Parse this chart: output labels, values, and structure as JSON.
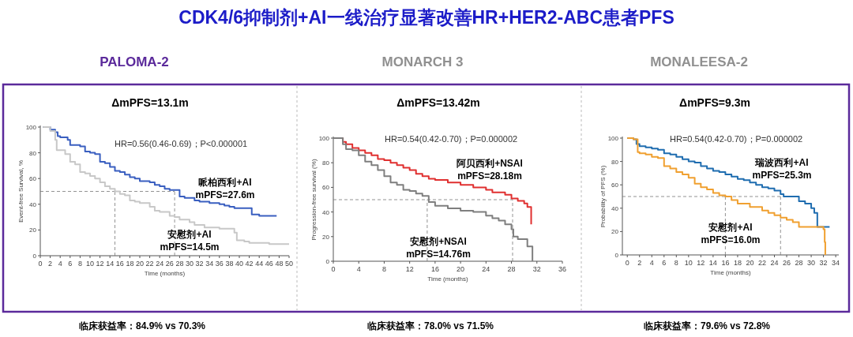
{
  "chart_data": [
    {
      "type": "other",
      "title": "CDK4/6抑制剂+AI一线治疗显著改善HR+HER2-ABC患者PFS"
    },
    {
      "type": "step",
      "title": "PALOMA-2",
      "subtitle": "ΔmPFS=13.1m",
      "xlabel": "Time (months)",
      "ylabel": "Event-free Survival, %",
      "xlim": [
        0,
        50
      ],
      "xticks": [
        0,
        2,
        4,
        6,
        8,
        10,
        12,
        14,
        16,
        18,
        20,
        22,
        24,
        26,
        28,
        30,
        32,
        34,
        36,
        38,
        40,
        42,
        44,
        46,
        48,
        50
      ],
      "ylim": [
        0,
        100
      ],
      "yticks": [
        0,
        20,
        40,
        60,
        80,
        100
      ],
      "grid": false,
      "annotations": [
        "HR=0.56(0.46-0.69)；P<0.000001",
        "mPFS=27.6m",
        "mPFS=14.5m",
        "临床获益率：84.9% vs 70.3%"
      ],
      "ref_lines": [
        {
          "axis": "y",
          "value": 50,
          "line_style": "dashed"
        },
        {
          "axis": "x",
          "value": 15,
          "line_style": "dashed"
        },
        {
          "axis": "x",
          "value": 27,
          "line_style": "dashed"
        }
      ],
      "series": [
        {
          "name": "哌柏西利+AI",
          "color": "#3a5fc0",
          "x": [
            0.5,
            1,
            2,
            3,
            3.5,
            4,
            5,
            5.5,
            6,
            8,
            9,
            10,
            11,
            12,
            13,
            14,
            15,
            16,
            17,
            18,
            19,
            20,
            22,
            23,
            24,
            25,
            26,
            27,
            28,
            29,
            30,
            31,
            32,
            34,
            36,
            37,
            38,
            39,
            40,
            42,
            42.5,
            44,
            46,
            47.5
          ],
          "values": [
            100,
            100,
            98,
            96,
            93,
            92,
            92,
            90,
            86,
            85,
            81,
            80,
            79,
            73,
            72,
            69,
            66,
            65,
            63,
            61,
            60,
            58,
            57,
            55,
            54,
            52,
            51,
            51,
            46,
            45,
            45,
            43,
            42,
            41,
            40,
            39,
            38,
            37,
            37,
            37,
            32,
            31,
            31,
            31
          ]
        },
        {
          "name": "安慰剂+AI",
          "color": "#c8c8c8",
          "x": [
            0.5,
            2,
            3,
            3.3,
            5,
            6,
            7,
            8,
            9,
            10,
            11,
            12,
            13,
            14,
            15,
            16,
            17,
            18,
            19,
            20,
            22,
            23,
            24,
            26,
            27,
            28,
            30,
            31,
            33,
            34,
            36,
            38,
            39,
            39.5,
            41,
            42,
            46,
            50
          ],
          "values": [
            100,
            97,
            90,
            82,
            79,
            73,
            71,
            65,
            64,
            62,
            60,
            57,
            54,
            52,
            50,
            48,
            47,
            43,
            42,
            41,
            38,
            35,
            34,
            31,
            30,
            28,
            26,
            24,
            22,
            22,
            21,
            21,
            18,
            12,
            11,
            10,
            9,
            9
          ]
        }
      ]
    },
    {
      "type": "step",
      "title": "MONARCH 3",
      "subtitle": "ΔmPFS=13.42m",
      "xlabel": "Time (months)",
      "ylabel": "Progression-free survival (%)",
      "xlim": [
        0,
        36
      ],
      "xticks": [
        0,
        4,
        8,
        12,
        16,
        20,
        24,
        28,
        32,
        36
      ],
      "ylim": [
        0,
        100
      ],
      "yticks": [
        0,
        20,
        40,
        60,
        80,
        100
      ],
      "grid": false,
      "annotations": [
        "HR=0.54(0.42-0.70)；P=0.000002",
        "mPFS=28.18m",
        "mPFS=14.76m",
        "临床获益率：78.0% vs 71.5%"
      ],
      "ref_lines": [
        {
          "axis": "y",
          "value": 50,
          "line_style": "dashed"
        },
        {
          "axis": "x",
          "value": 14.76,
          "line_style": "dashed"
        },
        {
          "axis": "x",
          "value": 28.18,
          "line_style": "dashed"
        }
      ],
      "series": [
        {
          "name": "阿贝西利+NSAI",
          "color": "#e03030",
          "x": [
            0,
            1,
            1.5,
            2,
            3,
            4,
            5,
            6,
            7,
            8,
            9,
            10,
            11,
            12,
            13,
            14,
            15,
            16,
            18,
            20,
            22,
            24,
            25,
            26,
            27,
            28,
            29,
            30,
            30.5,
            31,
            31.1
          ],
          "values": [
            100,
            100,
            97,
            95,
            92,
            90,
            88,
            86,
            83,
            82,
            80,
            78,
            76,
            74,
            71,
            69,
            67,
            66,
            64,
            62,
            60,
            58,
            56,
            56,
            54,
            51,
            49,
            47,
            44,
            44,
            30
          ]
        },
        {
          "name": "安慰剂+NSAI",
          "color": "#7f7f7f",
          "x": [
            0,
            1,
            1.5,
            2,
            3,
            4,
            5,
            6,
            7,
            8,
            9,
            10,
            11,
            12,
            13,
            14,
            15,
            16,
            18,
            20,
            22,
            24,
            25,
            26,
            27,
            28,
            28.3,
            29,
            30,
            30.5,
            31,
            31.3
          ],
          "values": [
            100,
            100,
            95,
            91,
            90,
            86,
            81,
            78,
            74,
            69,
            64,
            62,
            58,
            57,
            55,
            53,
            48,
            45,
            43,
            41,
            40,
            37,
            35,
            33,
            30,
            26,
            20,
            18,
            18,
            12,
            12,
            0
          ]
        }
      ]
    },
    {
      "type": "step",
      "title": "MONALEESA-2",
      "subtitle": "ΔmPFS=9.3m",
      "xlabel": "Time (months)",
      "ylabel": "Probability of PFS (%)",
      "xlim": [
        -0.8,
        34.5
      ],
      "xticks": [
        0,
        2,
        4,
        6,
        8,
        10,
        12,
        14,
        16,
        18,
        20,
        22,
        24,
        26,
        28,
        30,
        32,
        34
      ],
      "ylim": [
        0,
        100
      ],
      "yticks": [
        0,
        20,
        40,
        60,
        80,
        100
      ],
      "grid": false,
      "annotations": [
        "HR=0.54(0.42-0.70)；P=0.000002",
        "mPFS=25.3m",
        "mPFS=16.0m",
        "临床获益率：79.6% vs 72.8%"
      ],
      "ref_lines": [
        {
          "axis": "y",
          "value": 50,
          "line_style": "dashed"
        },
        {
          "axis": "x",
          "value": 16,
          "line_style": "dashed"
        },
        {
          "axis": "x",
          "value": 25,
          "line_style": "dashed"
        }
      ],
      "series": [
        {
          "name": "瑞波西利+AI",
          "color": "#1f6db0",
          "x": [
            0,
            1,
            1.5,
            2,
            3,
            4,
            5,
            6,
            7,
            8,
            9,
            10,
            11,
            12,
            13,
            14,
            15,
            16,
            17,
            18,
            19,
            20,
            21,
            22,
            23,
            24,
            25,
            25.5,
            27,
            28,
            29,
            30,
            30.5,
            31,
            32,
            33
          ],
          "values": [
            100,
            99,
            95,
            93,
            92,
            91,
            90,
            87,
            86,
            84,
            82,
            80,
            79,
            76,
            74,
            72,
            71,
            69,
            67,
            65,
            64,
            62,
            60,
            58,
            57,
            55,
            52,
            50,
            50,
            46,
            44,
            40,
            36,
            24,
            24,
            24
          ]
        },
        {
          "name": "安慰剂+AI",
          "color": "#f0a030",
          "x": [
            0,
            1,
            1.7,
            2,
            3,
            4,
            5,
            6,
            7,
            8,
            9,
            10,
            11,
            12,
            13,
            14,
            15,
            16,
            17,
            18,
            20,
            22,
            23,
            24,
            25,
            26,
            27,
            28,
            30,
            31,
            32,
            32.2,
            32.3
          ],
          "values": [
            100,
            99,
            88,
            87,
            86,
            84,
            83,
            76,
            74,
            71,
            69,
            66,
            61,
            58,
            56,
            53,
            51,
            50,
            47,
            44,
            41,
            38,
            36,
            34,
            32,
            30,
            28,
            24,
            24,
            24,
            22,
            11,
            0
          ]
        }
      ]
    }
  ]
}
